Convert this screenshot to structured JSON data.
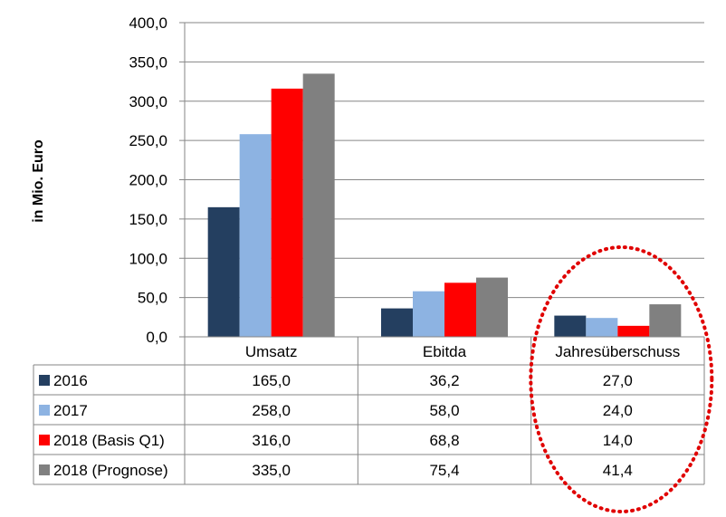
{
  "chart_data": {
    "type": "bar",
    "ylabel": "in Mio. Euro",
    "ylim": [
      0,
      400
    ],
    "yticks": [
      "0,0",
      "50,0",
      "100,0",
      "150,0",
      "200,0",
      "250,0",
      "300,0",
      "350,0",
      "400,0"
    ],
    "ytick_values": [
      0,
      50,
      100,
      150,
      200,
      250,
      300,
      350,
      400
    ],
    "categories": [
      "Umsatz",
      "Ebitda",
      "Jahresüberschuss"
    ],
    "grid": true,
    "legend": "data-table",
    "series": [
      {
        "name": "2016",
        "color": "#243f60",
        "values": [
          165.0,
          36.2,
          27.0
        ],
        "labels": [
          "165,0",
          "36,2",
          "27,0"
        ]
      },
      {
        "name": "2017",
        "color": "#8db3e2",
        "values": [
          258.0,
          58.0,
          24.0
        ],
        "labels": [
          "258,0",
          "58,0",
          "24,0"
        ]
      },
      {
        "name": "2018 (Basis Q1)",
        "color": "#ff0000",
        "values": [
          316.0,
          68.8,
          14.0
        ],
        "labels": [
          "316,0",
          "68,8",
          "14,0"
        ]
      },
      {
        "name": "2018 (Prognose)",
        "color": "#808080",
        "values": [
          335.0,
          75.4,
          41.4
        ],
        "labels": [
          "335,0",
          "75,4",
          "41,4"
        ]
      }
    ],
    "annotations": [
      {
        "type": "dotted-ellipse",
        "color": "#e00000",
        "target_category": "Jahresüberschuss"
      }
    ]
  }
}
